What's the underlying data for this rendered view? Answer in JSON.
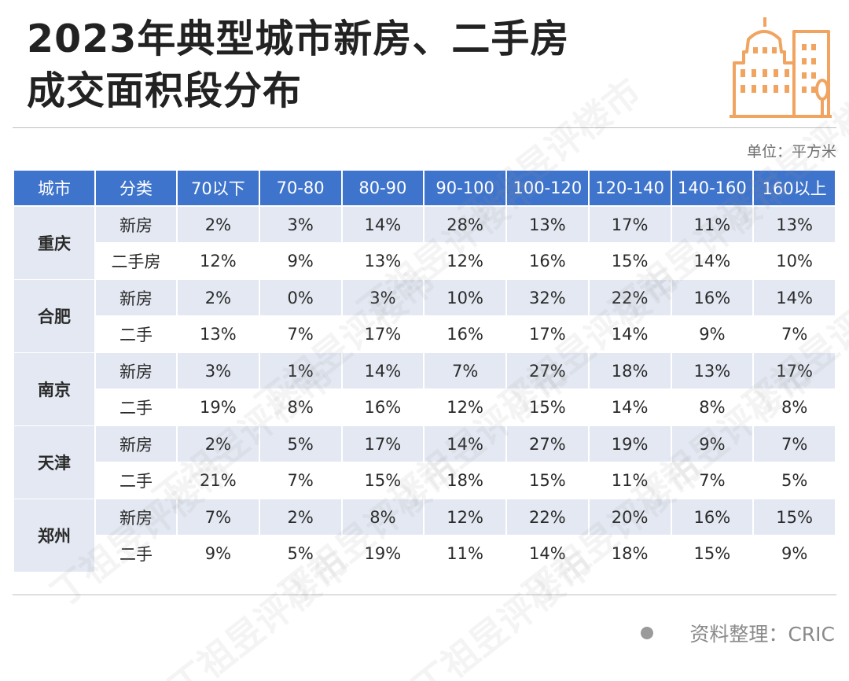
{
  "title": {
    "line1": "2023年典型城市新房、二手房",
    "line2": "成交面积段分布"
  },
  "logo_icon": "buildings-icon",
  "accent_color": "#f0a460",
  "header_color": "#3f74cc",
  "unit_label": "单位：平方米",
  "source_label": "资料整理：CRIC",
  "watermark_text": "丁祖昱评楼市",
  "chart_data": {
    "type": "table",
    "columns": [
      "城市",
      "分类",
      "70以下",
      "70-80",
      "80-90",
      "90-100",
      "100-120",
      "120-140",
      "140-160",
      "160以上"
    ],
    "rows": [
      {
        "city": "重庆",
        "type": "新房",
        "values": [
          "2%",
          "3%",
          "14%",
          "28%",
          "13%",
          "17%",
          "11%",
          "13%"
        ]
      },
      {
        "city": "重庆",
        "type": "二手房",
        "values": [
          "12%",
          "9%",
          "13%",
          "12%",
          "16%",
          "15%",
          "14%",
          "10%"
        ]
      },
      {
        "city": "合肥",
        "type": "新房",
        "values": [
          "2%",
          "0%",
          "3%",
          "10%",
          "32%",
          "22%",
          "16%",
          "14%"
        ]
      },
      {
        "city": "合肥",
        "type": "二手",
        "values": [
          "13%",
          "7%",
          "17%",
          "16%",
          "17%",
          "14%",
          "9%",
          "7%"
        ]
      },
      {
        "city": "南京",
        "type": "新房",
        "values": [
          "3%",
          "1%",
          "14%",
          "7%",
          "27%",
          "18%",
          "13%",
          "17%"
        ]
      },
      {
        "city": "南京",
        "type": "二手",
        "values": [
          "19%",
          "8%",
          "16%",
          "12%",
          "15%",
          "14%",
          "8%",
          "8%"
        ]
      },
      {
        "city": "天津",
        "type": "新房",
        "values": [
          "2%",
          "5%",
          "17%",
          "14%",
          "27%",
          "19%",
          "9%",
          "7%"
        ]
      },
      {
        "city": "天津",
        "type": "二手",
        "values": [
          "21%",
          "7%",
          "15%",
          "18%",
          "15%",
          "11%",
          "7%",
          "5%"
        ]
      },
      {
        "city": "郑州",
        "type": "新房",
        "values": [
          "7%",
          "2%",
          "8%",
          "12%",
          "22%",
          "20%",
          "16%",
          "15%"
        ]
      },
      {
        "city": "郑州",
        "type": "二手",
        "values": [
          "9%",
          "5%",
          "19%",
          "11%",
          "14%",
          "18%",
          "15%",
          "9%"
        ]
      }
    ]
  }
}
